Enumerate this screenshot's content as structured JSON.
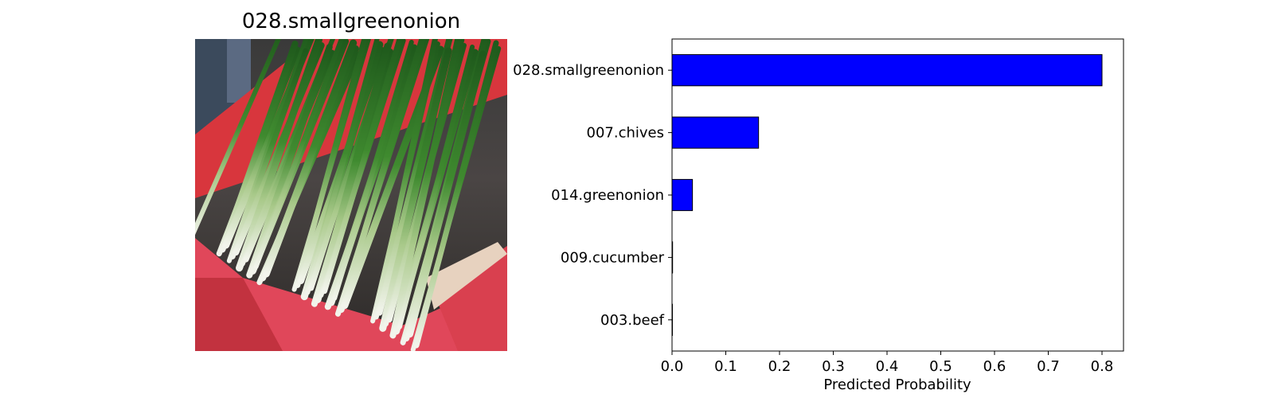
{
  "image_panel": {
    "title": "028.smallgreenonion",
    "photo_subject": "bundle of small green onions (scallions) in a red plastic crate"
  },
  "chart_data": {
    "type": "bar",
    "orientation": "horizontal",
    "title": "",
    "xlabel": "Predicted Probability",
    "ylabel": "",
    "categories": [
      "028.smallgreenonion",
      "007.chives",
      "014.greenonion",
      "009.cucumber",
      "003.beef"
    ],
    "values": [
      0.8,
      0.161,
      0.038,
      0.001,
      0.0005
    ],
    "xlim": [
      0,
      0.84
    ],
    "xticks": [
      "0.0",
      "0.1",
      "0.2",
      "0.3",
      "0.4",
      "0.5",
      "0.6",
      "0.7",
      "0.8"
    ],
    "xtick_values": [
      0,
      0.1,
      0.2,
      0.3,
      0.4,
      0.5,
      0.6,
      0.7,
      0.8
    ],
    "bar_color": "#0000ff",
    "edge_color": "#000000",
    "grid": false,
    "legend": "none"
  }
}
